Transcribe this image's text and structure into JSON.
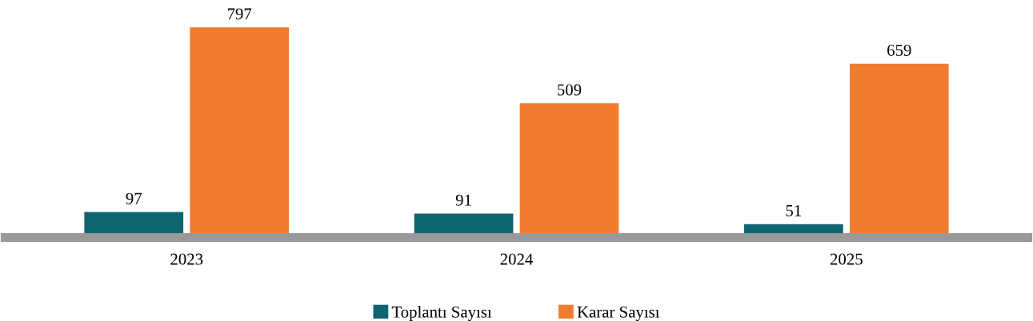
{
  "chart_data": {
    "type": "bar",
    "categories": [
      "2023",
      "2024",
      "2025"
    ],
    "series": [
      {
        "name": "Toplantı Sayısı",
        "color": "#0e6470",
        "values": [
          97,
          91,
          51
        ]
      },
      {
        "name": "Karar Sayısı",
        "color": "#f07c30",
        "values": [
          797,
          509,
          659
        ]
      }
    ],
    "data_labels": true,
    "legend": "bottom",
    "grid": false
  }
}
